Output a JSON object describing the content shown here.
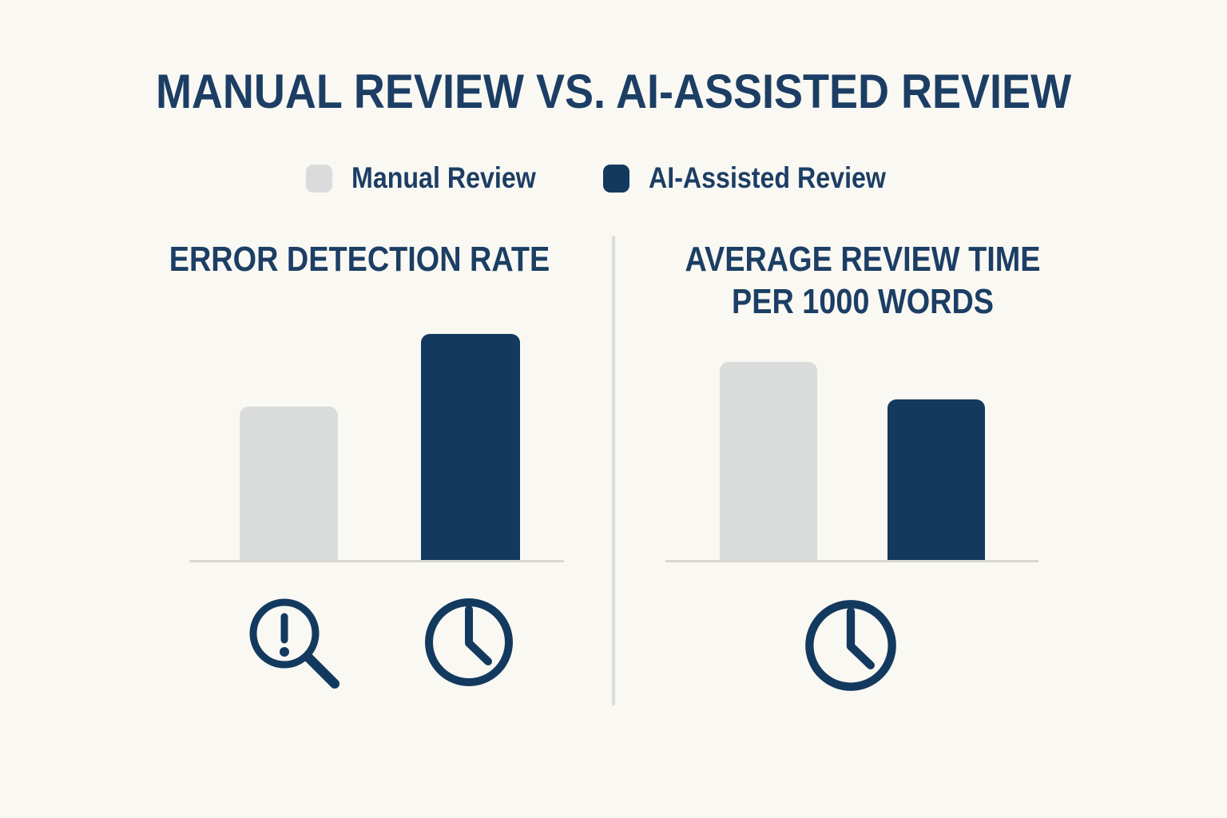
{
  "title": "MANUAL REVIEW VS. AI-ASSISTED REVIEW",
  "legend": {
    "items": [
      {
        "label": "Manual Review",
        "swatch_color": "#D9DCDA"
      },
      {
        "label": "AI-Assisted Review",
        "swatch_color": "#133A5E"
      }
    ]
  },
  "colors": {
    "background": "#FAF8F3",
    "navy": "#133A5E",
    "title_text": "#1C3E64",
    "gray_bar": "#D9DCDA",
    "axis_line": "#D8D7D2",
    "divider": "#DCDCD8"
  },
  "icons": [
    "magnifier-alert-icon",
    "clock-icon",
    "clock-icon"
  ],
  "chart_data": [
    {
      "type": "bar",
      "title": "ERROR DETECTION RATE",
      "title_lines": [
        "ERROR DETECTION RATE"
      ],
      "categories": [
        "Manual Review",
        "AI-Assisted Review"
      ],
      "series": [
        {
          "name": "Manual Review",
          "values": [
            68
          ]
        },
        {
          "name": "AI-Assisted Review",
          "values": [
            100
          ]
        }
      ],
      "values": [
        68,
        100
      ],
      "value_unit": "relative height, no numeric axis labels shown",
      "ylim": [
        0,
        100
      ],
      "grid": false,
      "legend_position": "top-center",
      "icons_below_axis": [
        "magnifier-alert-icon",
        "clock-icon"
      ]
    },
    {
      "type": "bar",
      "title": "AVERAGE REVIEW TIME PER 1000 WORDS",
      "title_lines": [
        "AVERAGE REVIEW TIME",
        "PER 1000 WORDS"
      ],
      "categories": [
        "Manual Review",
        "AI-Assisted Review"
      ],
      "series": [
        {
          "name": "Manual Review",
          "values": [
            100
          ]
        },
        {
          "name": "AI-Assisted Review",
          "values": [
            81
          ]
        }
      ],
      "values": [
        100,
        81
      ],
      "value_unit": "relative height, no numeric axis labels shown",
      "ylim": [
        0,
        100
      ],
      "grid": false,
      "legend_position": "top-center",
      "icons_below_axis": [
        "clock-icon"
      ]
    }
  ]
}
